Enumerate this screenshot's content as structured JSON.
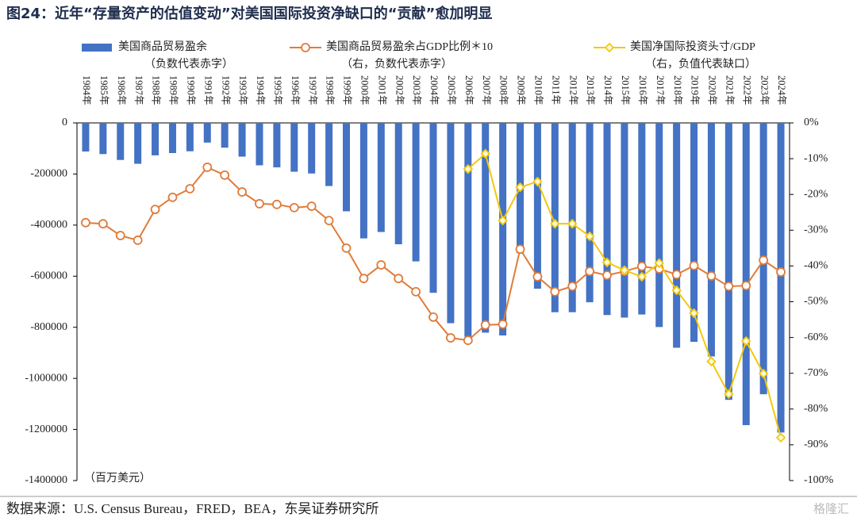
{
  "chart_data": {
    "type": "bar",
    "title": "图24：近年“存量资产的估值变动”对美国国际投资净缺口的“贡献”愈加明显",
    "unit_label": "（百万美元）",
    "source": "数据来源：U.S. Census Bureau，FRED，BEA，东吴证券研究所",
    "watermark": "格隆汇",
    "categories": [
      "1984年",
      "1985年",
      "1986年",
      "1987年",
      "1988年",
      "1989年",
      "1990年",
      "1991年",
      "1992年",
      "1993年",
      "1994年",
      "1995年",
      "1996年",
      "1997年",
      "1998年",
      "1999年",
      "2000年",
      "2001年",
      "2002年",
      "2003年",
      "2004年",
      "2005年",
      "2006年",
      "2007年",
      "2008年",
      "2009年",
      "2010年",
      "2011年",
      "2012年",
      "2013年",
      "2014年",
      "2015年",
      "2016年",
      "2017年",
      "2018年",
      "2019年",
      "2020年",
      "2021年",
      "2022年",
      "2023年",
      "2024年"
    ],
    "series": [
      {
        "name": "美国商品贸易盈余",
        "note": "（负数代表赤字）",
        "type": "bar",
        "axis": "y",
        "color": "#4472c4",
        "values": [
          -112000,
          -122000,
          -145000,
          -160000,
          -127000,
          -118000,
          -111000,
          -77000,
          -97000,
          -132000,
          -166000,
          -174000,
          -191000,
          -198000,
          -247000,
          -346000,
          -452000,
          -427000,
          -475000,
          -542000,
          -665000,
          -784000,
          -837000,
          -821000,
          -832000,
          -510000,
          -649000,
          -741000,
          -741000,
          -702000,
          -752000,
          -762000,
          -750000,
          -799000,
          -880000,
          -857000,
          -914000,
          -1084000,
          -1183000,
          -1062000,
          -1212000
        ]
      },
      {
        "name": "美国商品贸易盈余占GDP比例＊10",
        "note": "（右，负数代表赤字）",
        "type": "line",
        "marker": "circle",
        "axis": "y2",
        "color": "#e07b39",
        "values": [
          -27.9,
          -28.2,
          -31.5,
          -32.8,
          -24.2,
          -20.8,
          -18.4,
          -12.4,
          -14.6,
          -19.3,
          -22.6,
          -22.8,
          -23.7,
          -23.3,
          -27.3,
          -35.0,
          -43.5,
          -39.7,
          -43.5,
          -47.2,
          -54.3,
          -60.1,
          -60.8,
          -56.5,
          -56.3,
          -35.3,
          -43.0,
          -47.2,
          -45.7,
          -41.5,
          -42.6,
          -41.5,
          -40.1,
          -40.8,
          -42.4,
          -39.9,
          -42.8,
          -45.7,
          -45.5,
          -38.4,
          -41.7
        ]
      },
      {
        "name": "美国净国际投资头寸/GDP",
        "note": "（右，负值代表缺口）",
        "type": "line",
        "marker": "diamond",
        "axis": "y2",
        "color": "#f2c80f",
        "values": [
          null,
          null,
          null,
          null,
          null,
          null,
          null,
          null,
          null,
          null,
          null,
          null,
          null,
          null,
          null,
          null,
          null,
          null,
          null,
          null,
          null,
          null,
          -12.9,
          -8.6,
          -27.3,
          -18.0,
          -16.4,
          -28.2,
          -28.2,
          -31.7,
          -39.0,
          -41.2,
          -43.0,
          -39.2,
          -46.8,
          -53.2,
          -66.7,
          -75.8,
          -61.0,
          -70.1,
          -88.0
        ]
      }
    ],
    "ylim": [
      -1400000,
      0
    ],
    "yticks": [
      0,
      -200000,
      -400000,
      -600000,
      -800000,
      -1000000,
      -1200000,
      -1400000
    ],
    "y2lim": [
      -100,
      0
    ],
    "y2ticks": [
      {
        "value": 0,
        "label": "0%"
      },
      {
        "value": -10,
        "label": "-10%"
      },
      {
        "value": -20,
        "label": "-20%"
      },
      {
        "value": -30,
        "label": "-30%"
      },
      {
        "value": -40,
        "label": "-40%"
      },
      {
        "value": -50,
        "label": "-50%"
      },
      {
        "value": -60,
        "label": "-60%"
      },
      {
        "value": -70,
        "label": "-70%"
      },
      {
        "value": -80,
        "label": "-80%"
      },
      {
        "value": -90,
        "label": "-90%"
      },
      {
        "value": -100,
        "label": "-100%"
      }
    ],
    "grid": false
  }
}
